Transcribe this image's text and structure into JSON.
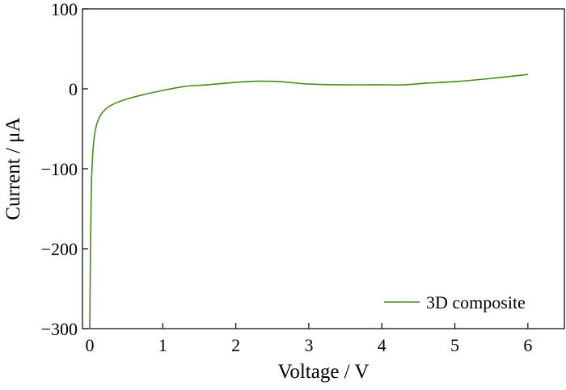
{
  "chart_data": {
    "type": "line",
    "title": "",
    "xlabel": "Voltage / V",
    "ylabel": "Current / μA",
    "xlim": [
      -0.1,
      6.5
    ],
    "ylim": [
      -300,
      100
    ],
    "x_ticks": [
      0,
      1,
      2,
      3,
      4,
      5,
      6
    ],
    "x_tick_labels": [
      "0",
      "1",
      "2",
      "3",
      "4",
      "5",
      "6"
    ],
    "y_ticks": [
      -300,
      -200,
      -100,
      0,
      100
    ],
    "y_tick_labels": [
      "−300",
      "−200",
      "−100",
      "0",
      "100"
    ],
    "grid": false,
    "legend_position": "bottom-right",
    "series": [
      {
        "name": "3D composite",
        "color": "#4a8a1c",
        "x": [
          0.0,
          0.01,
          0.02,
          0.03,
          0.05,
          0.08,
          0.12,
          0.17,
          0.25,
          0.35,
          0.5,
          0.7,
          1.0,
          1.3,
          1.6,
          2.0,
          2.3,
          2.6,
          3.0,
          3.5,
          4.0,
          4.3,
          4.6,
          5.0,
          5.5,
          6.0
        ],
        "y": [
          -300,
          -200,
          -130,
          -100,
          -70,
          -50,
          -38,
          -30,
          -23,
          -18,
          -13,
          -8,
          -2,
          3,
          5,
          8,
          9.5,
          9,
          6,
          5,
          5,
          5,
          7,
          9,
          13,
          18
        ]
      }
    ]
  }
}
